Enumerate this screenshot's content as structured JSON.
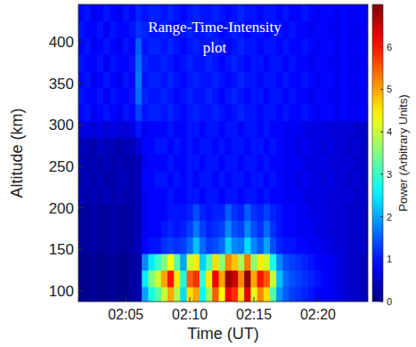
{
  "chart_data": {
    "type": "heatmap",
    "annotation": [
      "Range-Time-Intensity",
      "plot"
    ],
    "x_label": "Time (UT)",
    "y_label": "Altitude (km)",
    "colorbar_label": "Power (Arbitrary Units)",
    "x": [
      1.5,
      2,
      2.5,
      3,
      3.5,
      4,
      4.5,
      5,
      5.5,
      6,
      6.5,
      7,
      7.5,
      8,
      8.5,
      9,
      9.5,
      10,
      10.5,
      11,
      11.5,
      12,
      12.5,
      13,
      13.5,
      14,
      14.5,
      15,
      15.5,
      16,
      16.5,
      17,
      17.5,
      18,
      18.5,
      19,
      19.5,
      20,
      20.5,
      21,
      21.5,
      22,
      22.5,
      23,
      23.5,
      24
    ],
    "y": [
      95,
      115,
      135,
      155,
      175,
      195,
      215,
      235,
      255,
      275,
      295,
      315,
      335,
      355,
      375,
      395,
      415,
      435
    ],
    "values": [
      [
        0.1,
        0.1,
        0.2,
        0.1,
        0.1,
        0.2,
        0.1,
        0.1,
        0.2,
        0.3,
        2.0,
        2.8,
        3.2,
        4.0,
        5.0,
        3.8,
        2.4,
        4.6,
        5.0,
        2.6,
        3.8,
        5.5,
        4.4,
        6.2,
        5.8,
        4.6,
        6.3,
        4.2,
        5.2,
        4.6,
        3.2,
        1.9,
        1.5,
        1.3,
        1.2,
        1.1,
        1.0,
        0.9,
        0.8,
        0.8,
        0.7,
        0.6,
        0.5,
        0.5,
        0.4,
        0.4
      ],
      [
        0.1,
        0.1,
        0.2,
        0.1,
        0.1,
        0.2,
        0.1,
        0.1,
        0.2,
        0.3,
        2.5,
        3.5,
        4.0,
        5.0,
        6.0,
        4.5,
        2.8,
        5.5,
        5.8,
        3.0,
        4.5,
        6.2,
        5.0,
        6.8,
        6.5,
        5.2,
        6.9,
        5.0,
        6.0,
        5.5,
        4.0,
        2.2,
        1.6,
        1.4,
        1.3,
        1.2,
        1.1,
        1.0,
        0.9,
        0.8,
        0.7,
        0.6,
        0.5,
        0.5,
        0.4,
        0.4
      ],
      [
        0.1,
        0.1,
        0.2,
        0.1,
        0.1,
        0.2,
        0.1,
        0.1,
        0.2,
        0.3,
        1.8,
        2.5,
        3.0,
        3.5,
        4.3,
        3.2,
        2.0,
        4.0,
        4.5,
        2.3,
        3.2,
        4.6,
        3.6,
        5.2,
        4.8,
        3.8,
        5.3,
        3.6,
        4.5,
        4.0,
        2.8,
        1.8,
        1.4,
        1.3,
        1.2,
        1.1,
        1.0,
        0.9,
        0.8,
        0.8,
        0.7,
        0.6,
        0.5,
        0.5,
        0.4,
        0.4
      ],
      [
        0.2,
        0.2,
        0.3,
        0.2,
        0.2,
        0.3,
        0.2,
        0.2,
        0.3,
        0.4,
        0.9,
        1.0,
        1.0,
        1.2,
        1.3,
        1.2,
        1.3,
        1.6,
        2.2,
        1.6,
        1.3,
        1.4,
        1.6,
        2.3,
        1.8,
        1.7,
        2.4,
        1.8,
        1.5,
        2.0,
        1.4,
        1.1,
        1.0,
        1.0,
        0.9,
        0.9,
        0.8,
        0.8,
        0.7,
        0.7,
        0.6,
        0.6,
        0.5,
        0.5,
        0.5,
        0.4
      ],
      [
        0.2,
        0.2,
        0.3,
        0.2,
        0.2,
        0.3,
        0.2,
        0.2,
        0.3,
        0.4,
        0.8,
        0.9,
        0.9,
        1.0,
        1.1,
        1.0,
        1.1,
        1.3,
        1.7,
        1.3,
        1.1,
        1.2,
        1.3,
        1.8,
        1.4,
        1.3,
        1.8,
        1.4,
        1.2,
        1.6,
        1.2,
        1.0,
        0.9,
        0.9,
        0.8,
        0.8,
        0.8,
        0.7,
        0.7,
        0.6,
        0.6,
        0.6,
        0.5,
        0.5,
        0.5,
        0.4
      ],
      [
        0.2,
        0.2,
        0.3,
        0.2,
        0.2,
        0.3,
        0.2,
        0.2,
        0.3,
        0.4,
        0.8,
        0.9,
        0.9,
        0.9,
        1.0,
        1.0,
        1.0,
        1.1,
        1.4,
        1.1,
        1.0,
        1.1,
        1.1,
        1.5,
        1.2,
        1.1,
        1.5,
        1.2,
        1.1,
        1.3,
        1.1,
        1.0,
        0.9,
        0.9,
        0.8,
        0.8,
        0.7,
        0.7,
        0.7,
        0.6,
        0.6,
        0.6,
        0.5,
        0.5,
        0.5,
        0.4
      ],
      [
        0.4,
        0.3,
        0.4,
        0.3,
        0.4,
        0.3,
        0.4,
        0.3,
        0.3,
        0.4,
        0.8,
        0.9,
        0.9,
        0.9,
        1.0,
        0.9,
        0.9,
        1.0,
        1.0,
        0.9,
        1.0,
        1.0,
        0.9,
        1.0,
        1.0,
        0.9,
        1.0,
        1.0,
        0.9,
        1.0,
        0.9,
        0.9,
        0.8,
        0.8,
        0.8,
        0.7,
        0.7,
        0.7,
        0.7,
        0.6,
        0.6,
        0.6,
        0.6,
        0.5,
        0.5,
        0.5
      ],
      [
        0.3,
        0.4,
        0.3,
        0.4,
        0.3,
        0.3,
        0.4,
        0.4,
        0.3,
        0.4,
        0.9,
        0.9,
        1.0,
        1.0,
        0.9,
        1.0,
        0.9,
        1.0,
        0.9,
        1.0,
        1.0,
        0.9,
        1.0,
        0.9,
        1.0,
        1.0,
        0.9,
        1.0,
        1.0,
        0.9,
        1.0,
        0.9,
        0.8,
        0.8,
        0.7,
        0.8,
        0.7,
        0.7,
        0.6,
        0.7,
        0.6,
        0.6,
        0.5,
        0.6,
        0.5,
        0.5
      ],
      [
        0.4,
        0.3,
        0.4,
        0.3,
        0.4,
        0.3,
        0.4,
        0.3,
        0.3,
        0.4,
        0.8,
        0.9,
        0.9,
        0.9,
        1.0,
        0.9,
        0.9,
        1.0,
        1.0,
        0.9,
        1.0,
        1.0,
        0.9,
        1.0,
        1.0,
        0.9,
        1.0,
        1.0,
        0.9,
        1.0,
        0.9,
        0.9,
        0.8,
        0.8,
        0.8,
        0.7,
        0.7,
        0.7,
        0.7,
        0.6,
        0.6,
        0.6,
        0.6,
        0.5,
        0.5,
        0.5
      ],
      [
        0.4,
        0.4,
        0.3,
        0.5,
        0.4,
        0.4,
        0.3,
        0.4,
        0.4,
        0.6,
        0.9,
        0.9,
        1.0,
        1.0,
        0.9,
        1.0,
        0.9,
        1.0,
        0.9,
        1.0,
        1.0,
        0.9,
        1.0,
        0.9,
        1.0,
        1.0,
        0.9,
        1.0,
        1.0,
        0.9,
        1.0,
        0.9,
        0.8,
        0.8,
        0.7,
        0.8,
        0.7,
        0.7,
        0.6,
        0.7,
        0.6,
        0.6,
        0.5,
        0.6,
        0.5,
        0.5
      ],
      [
        0.6,
        0.7,
        0.6,
        0.7,
        0.6,
        0.7,
        0.6,
        0.6,
        0.7,
        1.0,
        0.8,
        0.9,
        0.9,
        0.9,
        1.0,
        0.9,
        0.9,
        1.0,
        1.0,
        0.9,
        1.0,
        1.0,
        0.9,
        1.0,
        1.0,
        0.9,
        1.0,
        1.0,
        0.9,
        1.0,
        0.9,
        0.9,
        0.8,
        0.8,
        0.8,
        0.7,
        0.7,
        0.7,
        0.7,
        0.6,
        0.6,
        0.6,
        0.6,
        0.5,
        0.5,
        0.5
      ],
      [
        0.9,
        1.0,
        0.8,
        0.9,
        1.0,
        0.9,
        0.8,
        1.0,
        0.9,
        1.3,
        1.0,
        1.1,
        1.1,
        1.0,
        1.1,
        1.0,
        0.9,
        1.0,
        1.1,
        1.0,
        1.0,
        1.1,
        1.0,
        0.9,
        1.0,
        1.1,
        1.0,
        1.0,
        0.9,
        1.0,
        1.0,
        0.9,
        1.0,
        0.9,
        0.9,
        1.0,
        0.9,
        0.8,
        0.9,
        0.9,
        0.8,
        0.9,
        0.8,
        0.8,
        0.9,
        0.8
      ],
      [
        1.0,
        0.9,
        0.9,
        1.0,
        0.8,
        1.0,
        0.9,
        0.9,
        1.0,
        1.6,
        1.1,
        1.0,
        1.0,
        1.1,
        1.0,
        0.9,
        1.0,
        1.1,
        1.0,
        1.0,
        1.1,
        1.0,
        0.9,
        1.0,
        1.1,
        1.0,
        0.9,
        1.0,
        1.0,
        0.9,
        1.0,
        1.0,
        0.9,
        1.0,
        0.9,
        0.9,
        0.8,
        0.9,
        0.9,
        0.8,
        0.8,
        0.9,
        0.8,
        0.8,
        0.8,
        0.9
      ],
      [
        0.9,
        1.0,
        0.8,
        0.9,
        1.0,
        0.9,
        0.8,
        1.0,
        0.9,
        1.7,
        1.0,
        1.1,
        1.1,
        1.0,
        1.1,
        1.0,
        0.9,
        1.0,
        1.1,
        1.0,
        1.0,
        1.1,
        1.0,
        0.9,
        1.0,
        1.1,
        1.0,
        1.0,
        0.9,
        1.0,
        1.0,
        0.9,
        1.0,
        0.9,
        0.9,
        1.0,
        0.9,
        0.8,
        0.9,
        0.9,
        0.8,
        0.9,
        0.8,
        0.8,
        0.9,
        0.8
      ],
      [
        1.0,
        0.9,
        0.9,
        1.0,
        0.8,
        1.0,
        0.9,
        0.9,
        1.0,
        1.6,
        1.1,
        1.0,
        1.0,
        1.1,
        1.0,
        0.9,
        1.0,
        1.1,
        1.0,
        1.0,
        1.1,
        1.0,
        0.9,
        1.0,
        1.1,
        1.0,
        0.9,
        1.0,
        1.0,
        0.9,
        1.0,
        1.0,
        0.9,
        1.0,
        0.9,
        0.9,
        0.8,
        0.9,
        0.9,
        0.8,
        0.8,
        0.9,
        0.8,
        0.8,
        0.8,
        0.9
      ],
      [
        0.9,
        1.0,
        0.8,
        0.9,
        1.0,
        0.9,
        0.8,
        1.0,
        0.9,
        1.5,
        1.0,
        1.1,
        1.1,
        1.0,
        1.1,
        1.0,
        0.9,
        1.0,
        1.1,
        1.0,
        1.0,
        1.1,
        1.0,
        0.9,
        1.0,
        1.1,
        1.0,
        1.0,
        0.9,
        1.0,
        1.0,
        0.9,
        1.0,
        0.9,
        0.9,
        1.0,
        0.9,
        0.8,
        0.9,
        0.9,
        0.8,
        0.9,
        0.8,
        0.8,
        0.9,
        0.8
      ],
      [
        1.0,
        0.9,
        0.9,
        1.0,
        0.8,
        1.0,
        0.9,
        0.9,
        1.0,
        1.2,
        1.1,
        1.0,
        1.0,
        1.1,
        1.0,
        0.9,
        1.0,
        1.1,
        1.0,
        1.0,
        1.1,
        1.0,
        0.9,
        1.0,
        1.1,
        1.0,
        0.9,
        1.0,
        1.0,
        0.9,
        1.0,
        1.0,
        0.9,
        1.0,
        0.9,
        0.9,
        0.8,
        0.9,
        0.9,
        0.8,
        0.8,
        0.9,
        0.8,
        0.8,
        0.8,
        0.9
      ],
      [
        0.9,
        1.0,
        0.8,
        0.9,
        1.0,
        0.9,
        0.8,
        1.0,
        0.9,
        1.1,
        1.0,
        1.1,
        1.1,
        1.0,
        1.1,
        1.0,
        0.9,
        1.0,
        1.1,
        1.0,
        1.0,
        1.1,
        1.0,
        0.9,
        1.0,
        1.1,
        1.0,
        1.0,
        0.9,
        1.0,
        1.0,
        0.9,
        1.0,
        0.9,
        0.9,
        1.0,
        0.9,
        0.8,
        0.9,
        0.9,
        0.8,
        0.9,
        0.8,
        0.8,
        0.9,
        0.8
      ]
    ],
    "xlim": [
      1.3,
      23.9
    ],
    "ylim": [
      87,
      445
    ],
    "xticks": [
      {
        "value": 5,
        "label": "02:05"
      },
      {
        "value": 10,
        "label": "02:10"
      },
      {
        "value": 15,
        "label": "02:15"
      },
      {
        "value": 20,
        "label": "02:20"
      }
    ],
    "yticks": [
      100,
      150,
      200,
      250,
      300,
      350,
      400
    ],
    "color_range": [
      0,
      7
    ],
    "color_ticks": [
      0,
      1,
      2,
      3,
      4,
      5,
      6
    ]
  }
}
